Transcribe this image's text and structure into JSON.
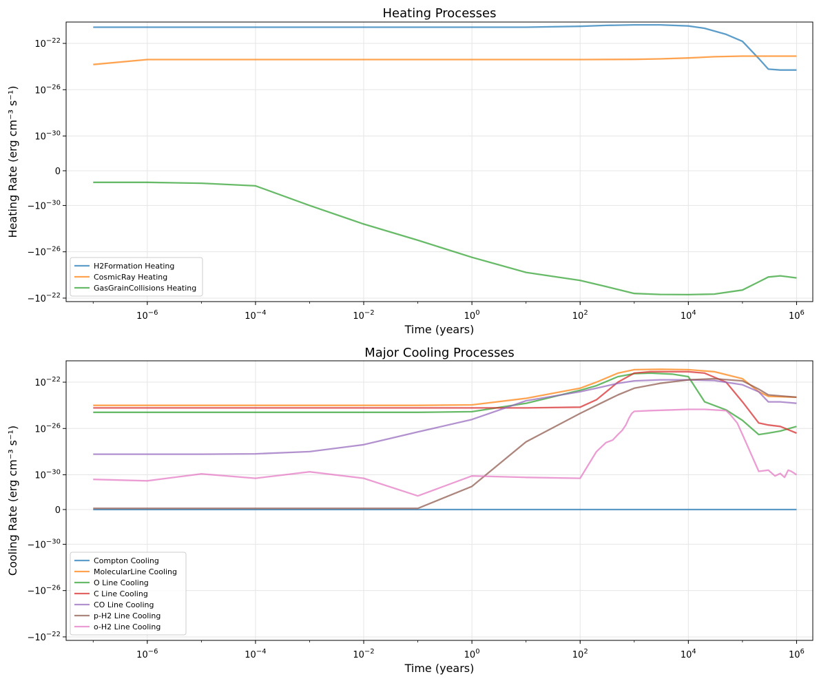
{
  "chart_data": [
    {
      "type": "line",
      "title": "Heating Processes",
      "xlabel": "Time (years)",
      "ylabel": "Heating Rate (erg cm⁻³ s⁻¹)",
      "x_scale": "log",
      "y_scale": "symlog",
      "xlim": [
        1e-07,
        1000000.0
      ],
      "x_ticks": [
        {
          "value": 1e-06,
          "label": "10⁻⁶"
        },
        {
          "value": 0.0001,
          "label": "10⁻⁴"
        },
        {
          "value": 0.01,
          "label": "10⁻²"
        },
        {
          "value": 1,
          "label": "10⁰"
        },
        {
          "value": 100,
          "label": "10²"
        },
        {
          "value": 10000,
          "label": "10⁴"
        },
        {
          "value": 1000000,
          "label": "10⁶"
        }
      ],
      "y_ticks": [
        {
          "value": 1e-22,
          "label": "10⁻²²"
        },
        {
          "value": 1e-26,
          "label": "10⁻²⁶"
        },
        {
          "value": 1e-30,
          "label": "10⁻³⁰"
        },
        {
          "value": 0,
          "label": "0"
        },
        {
          "value": -1e-30,
          "label": "−10⁻³⁰"
        },
        {
          "value": -1e-26,
          "label": "−10⁻²⁶"
        },
        {
          "value": -1e-22,
          "label": "−10⁻²²"
        }
      ],
      "grid": true,
      "legend_position": "lower left",
      "series": [
        {
          "name": "H2Formation Heating",
          "color": "#1f77b4",
          "x": [
            1e-07,
            1e-06,
            1e-05,
            0.0001,
            0.001,
            0.01,
            0.1,
            1,
            10,
            100,
            300,
            1000,
            3000,
            10000,
            20000,
            50000,
            100000,
            200000,
            300000,
            500000,
            1000000
          ],
          "y": [
            2.5e-21,
            2.5e-21,
            2.5e-21,
            2.5e-21,
            2.5e-21,
            2.5e-21,
            2.5e-21,
            2.5e-21,
            2.5e-21,
            3e-21,
            3.6e-21,
            4e-21,
            4e-21,
            3.2e-21,
            2e-21,
            6e-22,
            1.5e-22,
            5e-24,
            6e-25,
            5e-25,
            5e-25
          ]
        },
        {
          "name": "CosmicRay Heating",
          "color": "#ff7f0e",
          "x": [
            1e-07,
            1e-06,
            1e-05,
            0.0001,
            0.001,
            0.01,
            0.1,
            1,
            10,
            100,
            1000,
            3000,
            10000,
            30000,
            100000,
            300000,
            1000000
          ],
          "y": [
            1.5e-24,
            4e-24,
            4e-24,
            4e-24,
            4e-24,
            4e-24,
            4e-24,
            4e-24,
            4e-24,
            4e-24,
            4.2e-24,
            4.6e-24,
            5.5e-24,
            7e-24,
            8e-24,
            8e-24,
            8e-24
          ]
        },
        {
          "name": "GasGrainCollisions Heating",
          "color": "#2ca02c",
          "x": [
            1e-07,
            1e-06,
            1e-05,
            0.0001,
            0.001,
            0.01,
            0.1,
            1,
            10,
            100,
            300,
            1000,
            3000,
            10000,
            30000,
            100000,
            200000,
            300000,
            500000,
            1000000
          ],
          "y": [
            -1e-32,
            -1e-32,
            -1.2e-32,
            -2e-32,
            -1e-30,
            -4e-29,
            -1e-27,
            -3e-26,
            -6e-25,
            -3e-24,
            -1e-23,
            -4e-23,
            -4.8e-23,
            -5e-23,
            -4.5e-23,
            -2e-23,
            -4e-24,
            -1.5e-24,
            -1.2e-24,
            -1.8e-24
          ]
        }
      ]
    },
    {
      "type": "line",
      "title": "Major Cooling Processes",
      "xlabel": "Time (years)",
      "ylabel": "Cooling Rate (erg cm⁻³ s⁻¹)",
      "x_scale": "log",
      "y_scale": "symlog",
      "xlim": [
        1e-07,
        1000000.0
      ],
      "x_ticks": [
        {
          "value": 1e-06,
          "label": "10⁻⁶"
        },
        {
          "value": 0.0001,
          "label": "10⁻⁴"
        },
        {
          "value": 0.01,
          "label": "10⁻²"
        },
        {
          "value": 1,
          "label": "10⁰"
        },
        {
          "value": 100,
          "label": "10²"
        },
        {
          "value": 10000,
          "label": "10⁴"
        },
        {
          "value": 1000000,
          "label": "10⁶"
        }
      ],
      "y_ticks": [
        {
          "value": 1e-22,
          "label": "10⁻²²"
        },
        {
          "value": 1e-26,
          "label": "10⁻²⁶"
        },
        {
          "value": 1e-30,
          "label": "10⁻³⁰"
        },
        {
          "value": 0,
          "label": "0"
        },
        {
          "value": -1e-30,
          "label": "−10⁻³⁰"
        },
        {
          "value": -1e-26,
          "label": "−10⁻²⁶"
        },
        {
          "value": -1e-22,
          "label": "−10⁻²²"
        }
      ],
      "grid": true,
      "legend_position": "lower left",
      "series": [
        {
          "name": "Compton Cooling",
          "color": "#1f77b4",
          "x": [
            1e-07,
            1000000
          ],
          "y": [
            0,
            0
          ]
        },
        {
          "name": "MolecularLine Cooling",
          "color": "#ff7f0e",
          "x": [
            1e-07,
            1e-06,
            1e-05,
            0.0001,
            0.001,
            0.01,
            0.1,
            1,
            10,
            100,
            200,
            500,
            1000,
            3000,
            10000,
            30000,
            100000,
            200000,
            300000,
            1000000
          ],
          "y": [
            1e-24,
            1e-24,
            1e-24,
            1e-24,
            1e-24,
            1e-24,
            1e-24,
            1.1e-24,
            4e-24,
            3e-23,
            1e-22,
            6e-22,
            1.2e-21,
            1.3e-21,
            1.2e-21,
            8e-22,
            2e-22,
            1.5e-23,
            6e-24,
            5e-24
          ]
        },
        {
          "name": "O Line Cooling",
          "color": "#2ca02c",
          "x": [
            1e-07,
            1e-06,
            1e-05,
            0.0001,
            0.001,
            0.01,
            0.1,
            1,
            10,
            100,
            200,
            500,
            1000,
            2000,
            5000,
            10000,
            20000,
            50000,
            100000,
            200000,
            300000,
            500000,
            1000000
          ],
          "y": [
            2.5e-25,
            2.5e-25,
            2.5e-25,
            2.5e-25,
            2.5e-25,
            2.5e-25,
            2.5e-25,
            2.8e-25,
            1.5e-24,
            2e-23,
            5e-23,
            3e-22,
            5.5e-22,
            6e-22,
            5e-22,
            3e-22,
            2e-24,
            4e-25,
            5e-26,
            3e-27,
            4e-27,
            6e-27,
            1.5e-26
          ]
        },
        {
          "name": "C Line Cooling",
          "color": "#d62728",
          "x": [
            1e-07,
            1e-06,
            1e-05,
            0.0001,
            0.001,
            0.01,
            0.1,
            1,
            10,
            100,
            200,
            500,
            1000,
            2000,
            5000,
            10000,
            20000,
            50000,
            100000,
            200000,
            300000,
            500000,
            1000000
          ],
          "y": [
            6e-25,
            6e-25,
            6e-25,
            6e-25,
            6e-25,
            6e-25,
            6e-25,
            6e-25,
            6e-25,
            7e-25,
            3e-24,
            1e-22,
            6e-22,
            8e-22,
            8e-22,
            8e-22,
            6e-22,
            1e-22,
            2e-24,
            3e-26,
            2e-26,
            1.5e-26,
            4e-27
          ]
        },
        {
          "name": "CO Line Cooling",
          "color": "#9467bd",
          "x": [
            1e-07,
            1e-06,
            1e-05,
            0.0001,
            0.001,
            0.01,
            0.1,
            1,
            10,
            100,
            200,
            500,
            1000,
            3000,
            10000,
            30000,
            100000,
            200000,
            300000,
            500000,
            1000000
          ],
          "y": [
            6e-29,
            6e-29,
            6e-29,
            6.5e-29,
            1e-28,
            4e-28,
            5e-27,
            6e-26,
            2.5e-24,
            1.5e-23,
            3e-23,
            8e-23,
            1.3e-22,
            1.6e-22,
            1.6e-22,
            1.4e-22,
            6e-23,
            1.5e-23,
            2e-24,
            2e-24,
            1.5e-24
          ]
        },
        {
          "name": "p-H2 Line Cooling",
          "color": "#8c564b",
          "x": [
            1e-07,
            1e-06,
            1e-05,
            0.0001,
            0.001,
            0.01,
            0.1,
            1,
            10,
            100,
            200,
            500,
            1000,
            3000,
            10000,
            30000,
            100000,
            200000,
            300000,
            1000000
          ],
          "y": [
            1e-33,
            1e-33,
            1e-33,
            1e-33,
            1e-33,
            1e-33,
            1e-33,
            1e-31,
            7e-28,
            2e-25,
            1e-24,
            8e-24,
            3e-23,
            8e-23,
            1.6e-22,
            2e-22,
            1.3e-22,
            2.5e-23,
            8e-24,
            5e-24
          ]
        },
        {
          "name": "o-H2 Line Cooling",
          "color": "#e377c2",
          "x": [
            1e-07,
            1e-06,
            1e-05,
            0.0001,
            0.001,
            0.01,
            0.1,
            1,
            10,
            100,
            200,
            300,
            400,
            500,
            600,
            700,
            800,
            900,
            1000,
            2000,
            5000,
            10000,
            20000,
            50000,
            60000,
            80000,
            100000,
            200000,
            300000,
            400000,
            500000,
            600000,
            700000,
            800000,
            1000000
          ],
          "y": [
            4e-31,
            3e-31,
            1.2e-30,
            5e-31,
            1.8e-30,
            5e-31,
            1.5e-32,
            8e-31,
            6e-31,
            5e-31,
            1e-28,
            6e-28,
            1e-27,
            3e-27,
            7e-27,
            2e-26,
            8e-26,
            2e-25,
            3e-25,
            3.5e-25,
            4e-25,
            4.5e-25,
            4.5e-25,
            3.5e-25,
            1.5e-25,
            3e-26,
            3e-27,
            2e-30,
            2.5e-30,
            8e-31,
            1.3e-30,
            6e-31,
            2.5e-30,
            2e-30,
            1e-30
          ]
        }
      ]
    }
  ]
}
